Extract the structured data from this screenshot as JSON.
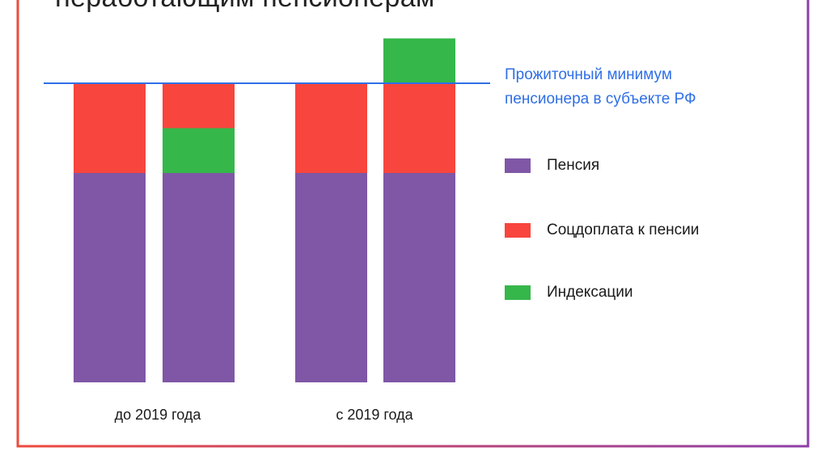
{
  "title": "неработающим пенсионерам",
  "minimum_label_lines": [
    "Прожиточный минимум",
    "пенсионера в субъекте РФ"
  ],
  "colors": {
    "pension": "#7f57a6",
    "social_supplement": "#f8453d",
    "indexation": "#35b74a",
    "minimum_line": "#2f6fe6",
    "frame_left": "#ee4a3e",
    "frame_right": "#8e3fa8"
  },
  "chart_data": {
    "type": "bar",
    "stacked": true,
    "title": "неработающим пенсионерам",
    "group_labels": [
      "до 2019 года",
      "с 2019 года"
    ],
    "bars": [
      {
        "group": "до 2019 года",
        "segments": {
          "Пенсия": 70,
          "Индексации": 0,
          "Соцдоплата к пенсии": 30
        }
      },
      {
        "group": "до 2019 года",
        "segments": {
          "Пенсия": 70,
          "Индексации": 15,
          "Соцдоплата к пенсии": 15
        }
      },
      {
        "group": "с 2019 года",
        "segments": {
          "Пенсия": 70,
          "Соцдоплата к пенсии": 30,
          "Индексации": 0
        }
      },
      {
        "group": "с 2019 года",
        "segments": {
          "Пенсия": 70,
          "Соцдоплата к пенсии": 30,
          "Индексации": 15
        }
      }
    ],
    "stack_order": [
      "Пенсия",
      "Индексации",
      "Соцдоплата к пенсии"
    ],
    "stack_order_by_group": {
      "до 2019 года": [
        "Пенсия",
        "Индексации",
        "Соцдоплата к пенсии"
      ],
      "с 2019 года": [
        "Пенсия",
        "Соцдоплата к пенсии",
        "Индексации"
      ]
    },
    "reference_line": {
      "label": "Прожиточный минимум пенсионера в субъекте РФ",
      "value": 100
    },
    "legend": [
      {
        "name": "Пенсия",
        "color": "#7f57a6"
      },
      {
        "name": "Соцдоплата к пенсии",
        "color": "#f8453d"
      },
      {
        "name": "Индексации",
        "color": "#35b74a"
      }
    ],
    "legend_position": "right",
    "grid": false,
    "ylim": [
      0,
      135
    ]
  }
}
